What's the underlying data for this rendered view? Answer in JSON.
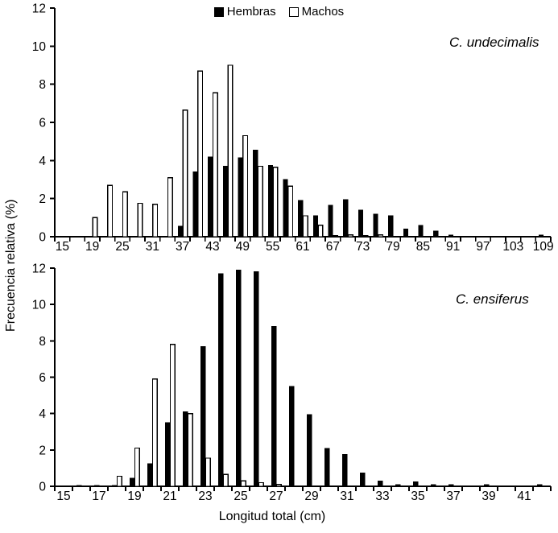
{
  "figure": {
    "ylabel": "Frecuencia relativa (%)",
    "xlabel": "Longitud total (cm)",
    "background": "#ffffff",
    "ink_color": "#000000"
  },
  "legend": {
    "position": "top-center",
    "items": [
      {
        "label": "Hembras",
        "fill": "#000000",
        "stroke": "#000000"
      },
      {
        "label": "Machos",
        "fill": "#ffffff",
        "stroke": "#000000"
      }
    ]
  },
  "chart_data": [
    {
      "type": "bar",
      "title": "C. undecimalis",
      "ylabel": "Frecuencia relativa (%)",
      "ylim": [
        0,
        12
      ],
      "yticks": [
        0,
        2,
        4,
        6,
        8,
        10,
        12
      ],
      "grid": false,
      "tick_label_every": 2,
      "categories": [
        15,
        17,
        19,
        22,
        25,
        28,
        31,
        34,
        37,
        40,
        43,
        46,
        49,
        52,
        55,
        58,
        61,
        64,
        67,
        70,
        73,
        76,
        79,
        82,
        85,
        88,
        91,
        94,
        97,
        100,
        103,
        106,
        109
      ],
      "series": [
        {
          "name": "Hembras",
          "values": [
            0,
            0,
            0,
            0,
            0,
            0,
            0,
            0,
            0.55,
            3.4,
            4.2,
            3.7,
            4.15,
            4.55,
            3.75,
            3.0,
            1.9,
            1.1,
            1.65,
            1.95,
            1.4,
            1.2,
            1.1,
            0.4,
            0.6,
            0.3,
            0.1,
            0,
            0,
            0,
            0,
            0,
            0.1
          ]
        },
        {
          "name": "Machos",
          "values": [
            0,
            0,
            1.0,
            2.7,
            2.35,
            1.75,
            1.7,
            3.1,
            6.65,
            8.7,
            7.55,
            9.0,
            5.3,
            3.7,
            3.65,
            2.65,
            1.1,
            0.6,
            0.05,
            0.1,
            0.05,
            0.1,
            0,
            0,
            0,
            0,
            0,
            0,
            0,
            0,
            0,
            0,
            0
          ]
        }
      ]
    },
    {
      "type": "bar",
      "title": "C. ensiferus",
      "xlabel": "Longitud total (cm)",
      "ylim": [
        0,
        12
      ],
      "yticks": [
        0,
        2,
        4,
        6,
        8,
        10,
        12
      ],
      "grid": false,
      "tick_label_every": 2,
      "categories": [
        15,
        16,
        17,
        18,
        19,
        20,
        21,
        22,
        23,
        24,
        25,
        26,
        27,
        28,
        29,
        30,
        31,
        32,
        33,
        34,
        35,
        36,
        37,
        38,
        39,
        40,
        41,
        42
      ],
      "series": [
        {
          "name": "Hembras",
          "values": [
            0,
            0.05,
            0.05,
            0.05,
            0.45,
            1.25,
            3.5,
            4.1,
            7.7,
            11.7,
            11.9,
            11.8,
            8.8,
            5.5,
            3.95,
            2.1,
            1.75,
            0.75,
            0.3,
            0.1,
            0.25,
            0.1,
            0.1,
            0,
            0.1,
            0,
            0,
            0.1
          ]
        },
        {
          "name": "Machos",
          "values": [
            0,
            0,
            0,
            0.55,
            2.1,
            5.9,
            7.8,
            4.0,
            1.55,
            0.65,
            0.3,
            0.2,
            0.1,
            0,
            0,
            0,
            0,
            0,
            0,
            0,
            0,
            0,
            0,
            0,
            0,
            0,
            0,
            0
          ]
        }
      ]
    }
  ]
}
